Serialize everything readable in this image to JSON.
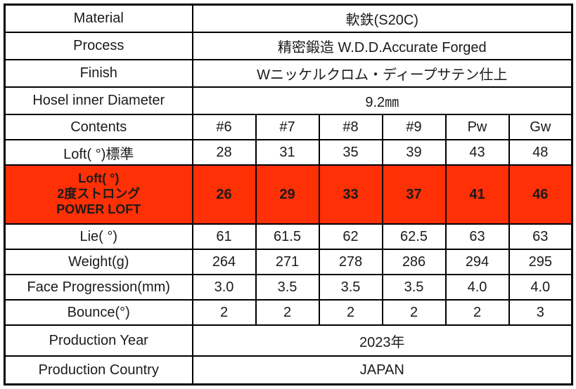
{
  "table": {
    "highlight_color": "#ff3005",
    "text_color": "#1b1b1b",
    "border_color": "#000000",
    "columns": [
      "#6",
      "#7",
      "#8",
      "#9",
      "Pw",
      "Gw"
    ],
    "rows": [
      {
        "label": "Material",
        "value": "軟鉄(S20C)"
      },
      {
        "label": "Process",
        "value": "精密鍛造 W.D.D.Accurate Forged"
      },
      {
        "label": "Finish",
        "value": "Wニッケルクロム・ディープサテン仕上"
      },
      {
        "label": "Hosel inner Diameter",
        "value": "9.2㎜"
      },
      {
        "label": "Contents",
        "values": [
          "#6",
          "#7",
          "#8",
          "#9",
          "Pw",
          "Gw"
        ]
      },
      {
        "label": "Loft( °)標準",
        "values": [
          "28",
          "31",
          "35",
          "39",
          "43",
          "48"
        ]
      },
      {
        "label_lines": [
          "Loft( °)",
          "2度ストロング",
          "POWER LOFT"
        ],
        "highlight": true,
        "values": [
          "26",
          "29",
          "33",
          "37",
          "41",
          "46"
        ]
      },
      {
        "label": "Lie( °)",
        "values": [
          "61",
          "61.5",
          "62",
          "62.5",
          "63",
          "63"
        ]
      },
      {
        "label": "Weight(g)",
        "values": [
          "264",
          "271",
          "278",
          "286",
          "294",
          "295"
        ]
      },
      {
        "label": "Face Progression(mm)",
        "values": [
          "3.0",
          "3.5",
          "3.5",
          "3.5",
          "4.0",
          "4.0"
        ]
      },
      {
        "label": "Bounce(°)",
        "values": [
          "2",
          "2",
          "2",
          "2",
          "2",
          "3"
        ]
      },
      {
        "label": "Production Year",
        "value": "2023年"
      },
      {
        "label": "Production Country",
        "value": "JAPAN"
      }
    ]
  }
}
